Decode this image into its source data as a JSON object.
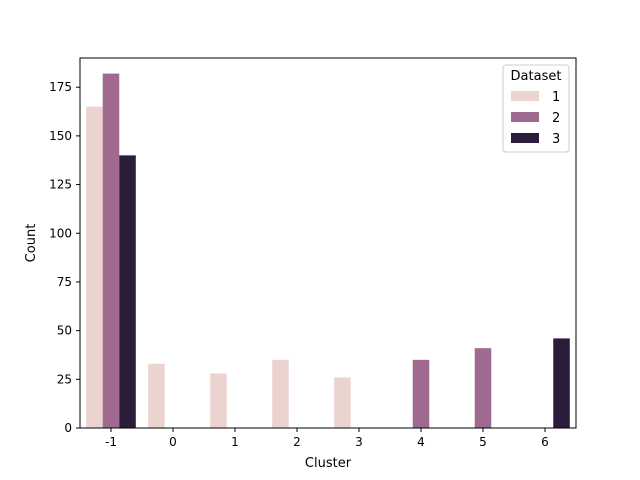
{
  "chart_data": {
    "type": "bar",
    "title": "",
    "xlabel": "Cluster",
    "ylabel": "Count",
    "categories": [
      "-1",
      "0",
      "1",
      "2",
      "3",
      "4",
      "5",
      "6"
    ],
    "y_ticks": [
      0,
      25,
      50,
      75,
      100,
      125,
      150,
      175
    ],
    "ylim": [
      0,
      190
    ],
    "grid": false,
    "legend": {
      "title": "Dataset",
      "placement": "top-right"
    },
    "series": [
      {
        "name": "1",
        "color": "#ebd3cf",
        "values": [
          165,
          33,
          28,
          35,
          26,
          0,
          0,
          0
        ]
      },
      {
        "name": "2",
        "color": "#a0698f",
        "values": [
          182,
          0,
          0,
          0,
          0,
          35,
          41,
          0
        ]
      },
      {
        "name": "3",
        "color": "#2b1d3a",
        "values": [
          140,
          0,
          0,
          0,
          0,
          0,
          0,
          46
        ]
      }
    ]
  }
}
